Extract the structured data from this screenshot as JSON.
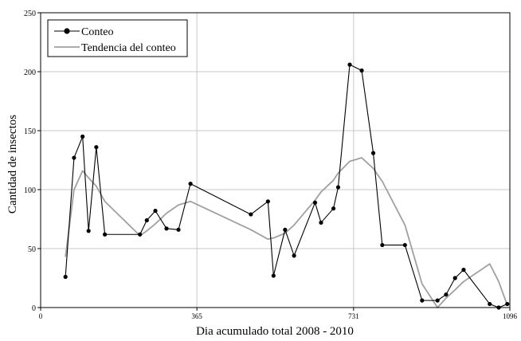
{
  "chart_data": {
    "type": "line",
    "xlabel": "Dia acumulado total 2008 - 2010",
    "ylabel": "Cantidad de insectos",
    "xlim": [
      0,
      1096
    ],
    "ylim": [
      0,
      250
    ],
    "x_ticks": [
      0,
      365,
      731,
      1096
    ],
    "y_ticks": [
      0,
      50,
      100,
      150,
      200,
      250
    ],
    "grid": true,
    "legend_position": "top-left",
    "series": [
      {
        "name": "Conteo",
        "color": "#000000",
        "marker": "circle",
        "x": [
          58,
          78,
          98,
          112,
          130,
          150,
          232,
          248,
          268,
          294,
          322,
          350,
          491,
          531,
          544,
          571,
          592,
          641,
          655,
          684,
          695,
          722,
          750,
          777,
          798,
          851,
          891,
          927,
          947,
          968,
          988,
          1049,
          1070,
          1090
        ],
        "y": [
          26,
          127,
          145,
          65,
          136,
          62,
          62,
          74,
          82,
          67,
          66,
          105,
          79,
          90,
          27,
          66,
          44,
          89,
          72,
          84,
          102,
          206,
          201,
          131,
          53,
          53,
          6,
          6,
          11,
          25,
          32,
          3,
          0,
          3
        ]
      },
      {
        "name": "Tendencia del conteo",
        "color": "#a0a0a0",
        "marker": "none",
        "x": [
          58,
          78,
          98,
          112,
          130,
          150,
          232,
          248,
          268,
          294,
          322,
          350,
          491,
          531,
          544,
          571,
          592,
          641,
          655,
          684,
          695,
          722,
          750,
          777,
          798,
          851,
          891,
          927,
          947,
          968,
          988,
          1049,
          1070,
          1090
        ],
        "y": [
          43,
          100,
          116,
          110,
          103,
          90,
          61,
          65,
          71,
          80,
          87,
          90,
          66,
          58,
          59,
          63,
          70,
          91,
          98,
          108,
          114,
          124,
          127,
          118,
          107,
          70,
          20,
          0,
          8,
          15,
          22,
          37,
          22,
          2
        ]
      }
    ]
  }
}
